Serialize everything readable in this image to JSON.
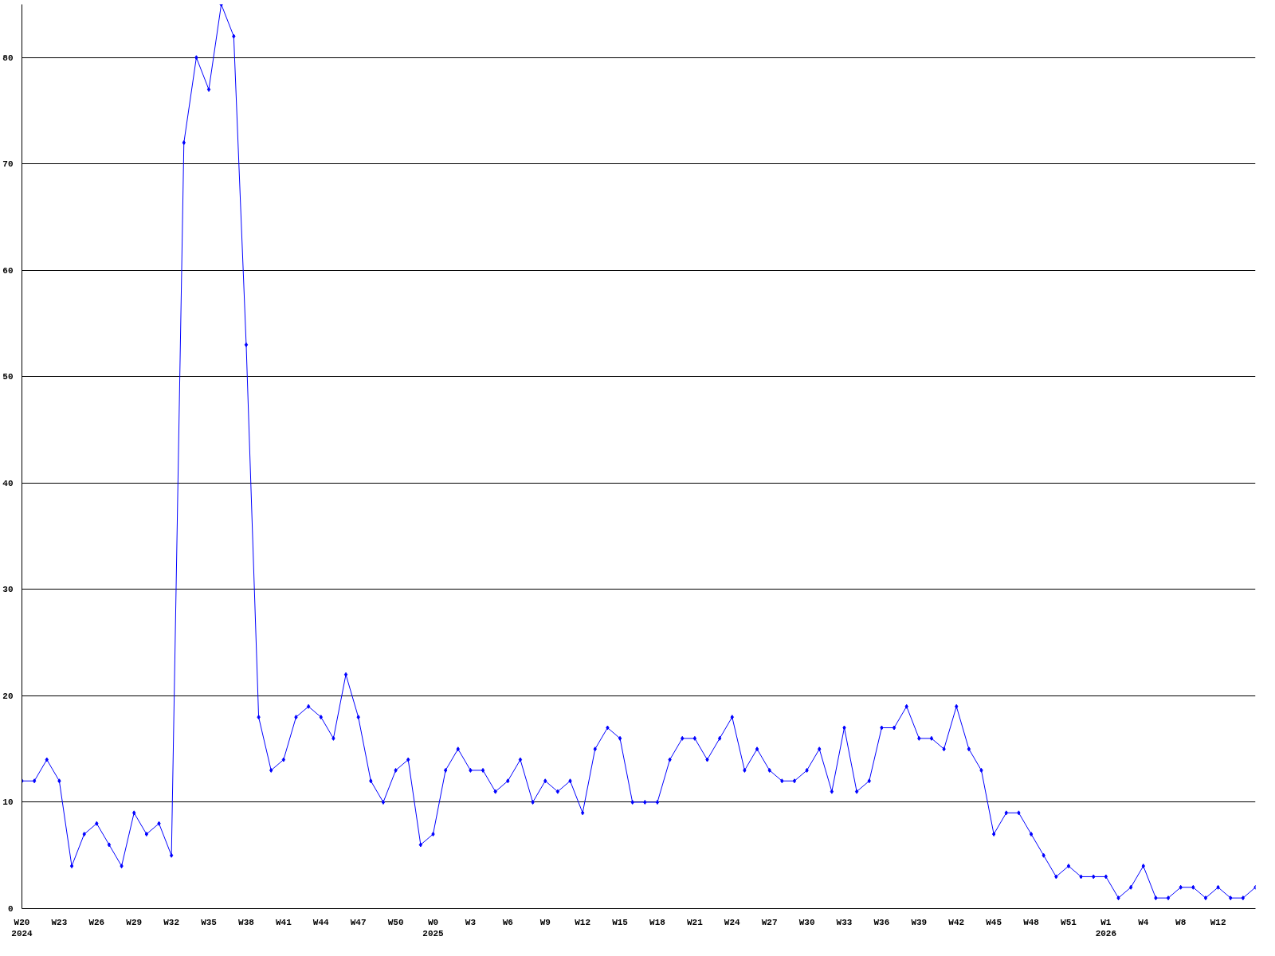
{
  "chart_data": {
    "type": "line",
    "categories": [
      "W20\n2024",
      null,
      null,
      "W23",
      null,
      null,
      "W26",
      null,
      null,
      "W29",
      null,
      null,
      "W32",
      null,
      null,
      "W35",
      null,
      null,
      "W38",
      null,
      null,
      "W41",
      null,
      null,
      "W44",
      null,
      null,
      "W47",
      null,
      null,
      "W50",
      null,
      null,
      "W0\n2025",
      null,
      null,
      "W3",
      null,
      null,
      "W6",
      null,
      null,
      "W9",
      null,
      null,
      "W12",
      null,
      null,
      "W15",
      null,
      null,
      "W18",
      null,
      null,
      "W21",
      null,
      null,
      "W24",
      null,
      null,
      "W27",
      null,
      null,
      "W30",
      null,
      null,
      "W33",
      null,
      null,
      "W36",
      null,
      null,
      "W39",
      null,
      null,
      "W42",
      null,
      null,
      "W45",
      null,
      null,
      "W48",
      null,
      null,
      "W51",
      null,
      null,
      "W1\n2026",
      null,
      null,
      "W4",
      null,
      null,
      "W8",
      null,
      null,
      "W12",
      null,
      null,
      null
    ],
    "series": [
      {
        "color": "#0000ff",
        "values": [
          12,
          12,
          14,
          12,
          4,
          7,
          8,
          6,
          4,
          9,
          7,
          8,
          5,
          72,
          80,
          77,
          85,
          82,
          53,
          18,
          13,
          14,
          18,
          19,
          18,
          16,
          22,
          18,
          12,
          10,
          13,
          14,
          6,
          7,
          13,
          15,
          13,
          13,
          11,
          12,
          14,
          10,
          12,
          11,
          12,
          9,
          15,
          17,
          16,
          10,
          10,
          10,
          14,
          16,
          16,
          14,
          16,
          18,
          13,
          15,
          13,
          12,
          12,
          13,
          15,
          11,
          17,
          11,
          12,
          17,
          17,
          19,
          16,
          16,
          15,
          19,
          15,
          13,
          7,
          9,
          9,
          7,
          5,
          3,
          4,
          3,
          3,
          3,
          1,
          2,
          4,
          1,
          1,
          2,
          2,
          1,
          2,
          1,
          1,
          2
        ]
      }
    ],
    "ylim": [
      0,
      85
    ],
    "yticks": [
      0,
      10,
      20,
      30,
      40,
      50,
      60,
      70,
      80
    ],
    "grid": "y",
    "marker": "diamond",
    "line_style": "solid"
  }
}
